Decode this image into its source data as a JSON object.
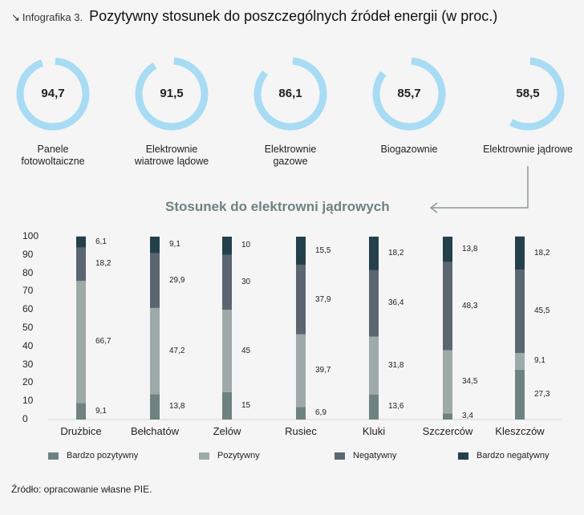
{
  "header": {
    "arrow_icon": "↘",
    "label": "Infografika 3.",
    "title": "Pozytywny stosunek do poszczególnych źródeł energii (w proc.)"
  },
  "donuts": [
    {
      "value": 94.7,
      "value_text": "94,7",
      "label_lines": [
        "Panele",
        "fotowoltaiczne"
      ]
    },
    {
      "value": 91.5,
      "value_text": "91,5",
      "label_lines": [
        "Elektrownie",
        "wiatrowe lądowe"
      ]
    },
    {
      "value": 86.1,
      "value_text": "86,1",
      "label_lines": [
        "Elektrownie",
        "gazowe"
      ]
    },
    {
      "value": 85.7,
      "value_text": "85,7",
      "label_lines": [
        "Biogazownie"
      ]
    },
    {
      "value": 58.5,
      "value_text": "58,5",
      "label_lines": [
        "Elektrownie jądrowe"
      ]
    }
  ],
  "subtitle": "Stosunek do elektrowni jądrowych",
  "colors": {
    "donut": "#a8dbf4",
    "bardzo_pozytywny": "#6f8282",
    "pozytywny": "#9eaaa8",
    "negatywny": "#5b6670",
    "bardzo_negatywny": "#24404a",
    "connector": "#8a9a9a"
  },
  "chart_data": {
    "type": "bar",
    "stacked": true,
    "title": "Stosunek do elektrowni jądrowych",
    "xlabel": "",
    "ylabel": "",
    "ylim": [
      0,
      100
    ],
    "yticks": [
      0,
      10,
      20,
      30,
      40,
      50,
      60,
      70,
      80,
      90,
      100
    ],
    "categories": [
      "Drużbice",
      "Bełchatów",
      "Zelów",
      "Rusiec",
      "Kluki",
      "Szczerców",
      "Kleszczów"
    ],
    "series": [
      {
        "name": "Bardzo pozytywny",
        "key": "bardzo_pozytywny",
        "values": [
          9.1,
          13.8,
          15,
          6.9,
          13.6,
          3.4,
          27.3
        ],
        "labels": [
          "9,1",
          "13,8",
          "15",
          "6,9",
          "13,6",
          "3,4",
          "27,3"
        ]
      },
      {
        "name": "Pozytywny",
        "key": "pozytywny",
        "values": [
          66.7,
          47.2,
          45,
          39.7,
          31.8,
          34.5,
          9.1
        ],
        "labels": [
          "66,7",
          "47,2",
          "45",
          "39,7",
          "31,8",
          "34,5",
          "9,1"
        ]
      },
      {
        "name": "Negatywny",
        "key": "negatywny",
        "values": [
          18.2,
          29.9,
          30,
          37.9,
          36.4,
          48.3,
          45.5
        ],
        "labels": [
          "18,2",
          "29,9",
          "30",
          "37,9",
          "36,4",
          "48,3",
          "45,5"
        ]
      },
      {
        "name": "Bardzo negatywny",
        "key": "bardzo_negatywny",
        "values": [
          6.1,
          9.1,
          10,
          15.5,
          18.2,
          13.8,
          18.2
        ],
        "labels": [
          "6,1",
          "9,1",
          "10",
          "15,5",
          "18,2",
          "13,8",
          "18,2"
        ]
      }
    ],
    "legend": [
      "Bardzo pozytywny",
      "Pozytywny",
      "Negatywny",
      "Bardzo negatywny"
    ]
  },
  "source": "Źródło: opracowanie własne PIE."
}
